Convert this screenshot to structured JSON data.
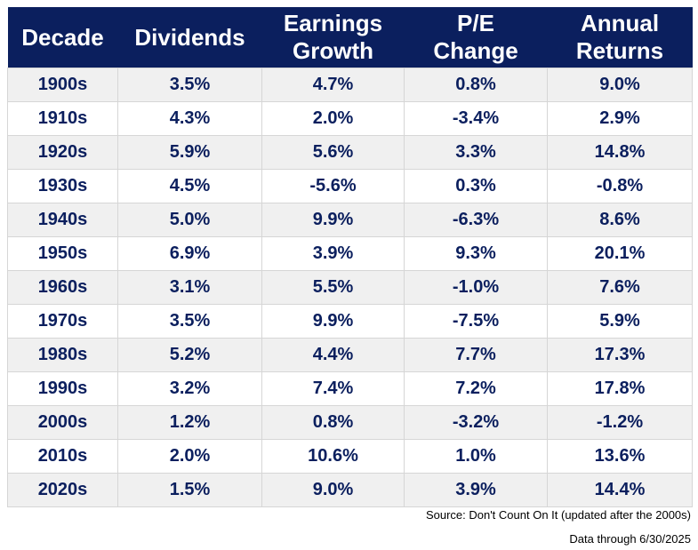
{
  "chart_data": {
    "type": "table",
    "columns": [
      {
        "key": "decade",
        "label_lines": [
          "Decade"
        ]
      },
      {
        "key": "dividends",
        "label_lines": [
          "Dividends"
        ]
      },
      {
        "key": "earnings_growth",
        "label_lines": [
          "Earnings",
          "Growth"
        ]
      },
      {
        "key": "pe_change",
        "label_lines": [
          "P/E",
          "Change"
        ]
      },
      {
        "key": "annual_returns",
        "label_lines": [
          "Annual",
          "Returns"
        ]
      }
    ],
    "rows": [
      [
        "1900s",
        "3.5%",
        "4.7%",
        "0.8%",
        "9.0%"
      ],
      [
        "1910s",
        "4.3%",
        "2.0%",
        "-3.4%",
        "2.9%"
      ],
      [
        "1920s",
        "5.9%",
        "5.6%",
        "3.3%",
        "14.8%"
      ],
      [
        "1930s",
        "4.5%",
        "-5.6%",
        "0.3%",
        "-0.8%"
      ],
      [
        "1940s",
        "5.0%",
        "9.9%",
        "-6.3%",
        "8.6%"
      ],
      [
        "1950s",
        "6.9%",
        "3.9%",
        "9.3%",
        "20.1%"
      ],
      [
        "1960s",
        "3.1%",
        "5.5%",
        "-1.0%",
        "7.6%"
      ],
      [
        "1970s",
        "3.5%",
        "9.9%",
        "-7.5%",
        "5.9%"
      ],
      [
        "1980s",
        "5.2%",
        "4.4%",
        "7.7%",
        "17.3%"
      ],
      [
        "1990s",
        "3.2%",
        "7.4%",
        "7.2%",
        "17.8%"
      ],
      [
        "2000s",
        "1.2%",
        "0.8%",
        "-3.2%",
        "-1.2%"
      ],
      [
        "2010s",
        "2.0%",
        "10.6%",
        "1.0%",
        "13.6%"
      ],
      [
        "2020s",
        "1.5%",
        "9.0%",
        "3.9%",
        "14.4%"
      ]
    ]
  },
  "footer": {
    "source": "Source: Don't Count On It (updated after the 2000s)",
    "data_through": "Data through 6/30/2025"
  },
  "colors": {
    "header_background": "#0b1f5e",
    "header_text": "#ffffff",
    "cell_text": "#0b1f5e",
    "row_shade": "#f0f0f0",
    "row_plain": "#ffffff",
    "grid_line": "#d6d6d6"
  }
}
